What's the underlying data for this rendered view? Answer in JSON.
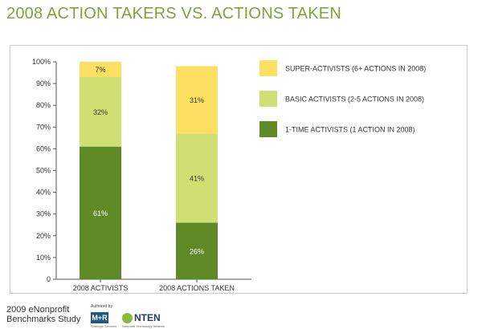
{
  "title": "2008 ACTION TAKERS VS. ACTIONS TAKEN",
  "footer": {
    "study_line1": "2009 eNonprofit",
    "study_line2": "Benchmarks Study",
    "authored_by": "Authored by",
    "mr_logo": "M+R",
    "mr_subtitle": "Strategic Services",
    "nten_logo": "NTEN",
    "nten_subtitle": "Nonprofit Technology Network"
  },
  "colors": {
    "title": "#7ea33c",
    "series": [
      "#5f8a25",
      "#d0df72",
      "#fde061"
    ]
  },
  "chart_data": {
    "type": "bar",
    "stacked": true,
    "title": "2008 ACTION TAKERS VS. ACTIONS TAKEN",
    "xlabel": "",
    "ylabel": "",
    "ylim": [
      0,
      100
    ],
    "y_ticks": [
      "0",
      "10%",
      "20%",
      "30%",
      "40%",
      "50%",
      "60%",
      "70%",
      "80%",
      "90%",
      "100%"
    ],
    "categories": [
      "2008 ACTIVISTS",
      "2008 ACTIONS TAKEN"
    ],
    "series": [
      {
        "name": "1-TIME ACTIVISTS (1 ACTION IN 2008)",
        "color": "#5f8a25",
        "values": [
          61,
          26
        ],
        "labels": [
          "61%",
          "26%"
        ],
        "label_color": "#ffffff"
      },
      {
        "name": "BASIC ACTIVISTS (2-5 ACTIONS IN 2008)",
        "color": "#d0df72",
        "values": [
          32,
          41
        ],
        "labels": [
          "32%",
          "41%"
        ],
        "label_color": "#333333"
      },
      {
        "name": "SUPER-ACTIVISTS (6+ ACTIONS IN 2008)",
        "color": "#fde061",
        "values": [
          7,
          31
        ],
        "labels": [
          "7%",
          "31%"
        ],
        "label_color": "#333333"
      }
    ],
    "legend_order": [
      2,
      1,
      0
    ],
    "legend_position": "right",
    "grid": false
  }
}
